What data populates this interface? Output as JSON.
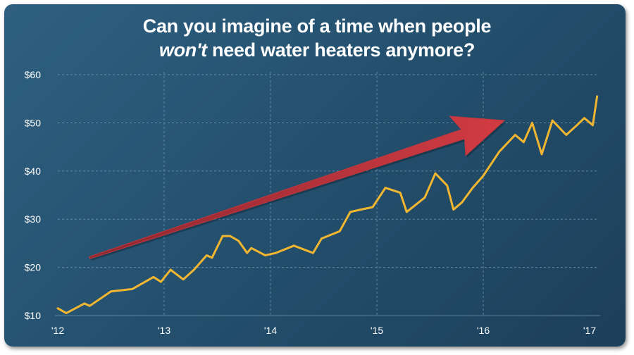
{
  "title": {
    "line1": "Can you imagine of a time when people",
    "line2_emph": "won't",
    "line2_rest": " need water heaters anymore?"
  },
  "colors": {
    "background_light": "#2f5f80",
    "background_dark": "#1c3f5a",
    "line": "#f2b630",
    "arrow": "#c4363d",
    "grid": "#6f97b3"
  },
  "chart_data": {
    "type": "line",
    "title": "Can you imagine of a time when people won't need water heaters anymore?",
    "xlabel": "",
    "ylabel": "",
    "xlim": [
      2012,
      2017.1
    ],
    "ylim": [
      10,
      60
    ],
    "x_ticks": [
      2012,
      2013,
      2014,
      2015,
      2016,
      2017
    ],
    "x_tick_labels": [
      "'12",
      "'13",
      "'14",
      "'15",
      "'16",
      "'17"
    ],
    "y_ticks": [
      10,
      20,
      30,
      40,
      50,
      60
    ],
    "y_tick_labels": [
      "$10",
      "$20",
      "$30",
      "$40",
      "$50",
      "$60"
    ],
    "grid": true,
    "series": [
      {
        "color": "#f2b630",
        "x": [
          2012.0,
          2012.08,
          2012.25,
          2012.3,
          2012.5,
          2012.7,
          2012.9,
          2012.97,
          2013.06,
          2013.18,
          2013.28,
          2013.4,
          2013.45,
          2013.55,
          2013.62,
          2013.7,
          2013.78,
          2013.82,
          2013.95,
          2014.05,
          2014.22,
          2014.4,
          2014.48,
          2014.65,
          2014.75,
          2014.85,
          2014.96,
          2015.08,
          2015.22,
          2015.28,
          2015.45,
          2015.55,
          2015.66,
          2015.72,
          2015.8,
          2015.9,
          2016.0,
          2016.15,
          2016.3,
          2016.38,
          2016.46,
          2016.55,
          2016.65,
          2016.78,
          2016.88,
          2016.95,
          2017.03,
          2017.07
        ],
        "y": [
          11.5,
          10.5,
          12.5,
          12.0,
          15.0,
          15.5,
          18.0,
          17.0,
          19.5,
          17.5,
          19.5,
          22.5,
          22.0,
          26.5,
          26.5,
          25.5,
          23.0,
          24.0,
          22.5,
          23.0,
          24.5,
          23.0,
          26.0,
          27.5,
          31.5,
          32.0,
          32.5,
          36.5,
          35.5,
          31.5,
          34.5,
          39.5,
          37.0,
          32.0,
          33.5,
          36.5,
          39.0,
          44.0,
          47.5,
          46.0,
          50.0,
          43.5,
          50.5,
          47.5,
          49.5,
          51.0,
          49.5,
          55.5
        ]
      }
    ],
    "annotations": [
      {
        "type": "arrow",
        "color": "#c4363d",
        "from": [
          2012.3,
          22
        ],
        "to": [
          2016.2,
          50.5
        ]
      }
    ]
  }
}
